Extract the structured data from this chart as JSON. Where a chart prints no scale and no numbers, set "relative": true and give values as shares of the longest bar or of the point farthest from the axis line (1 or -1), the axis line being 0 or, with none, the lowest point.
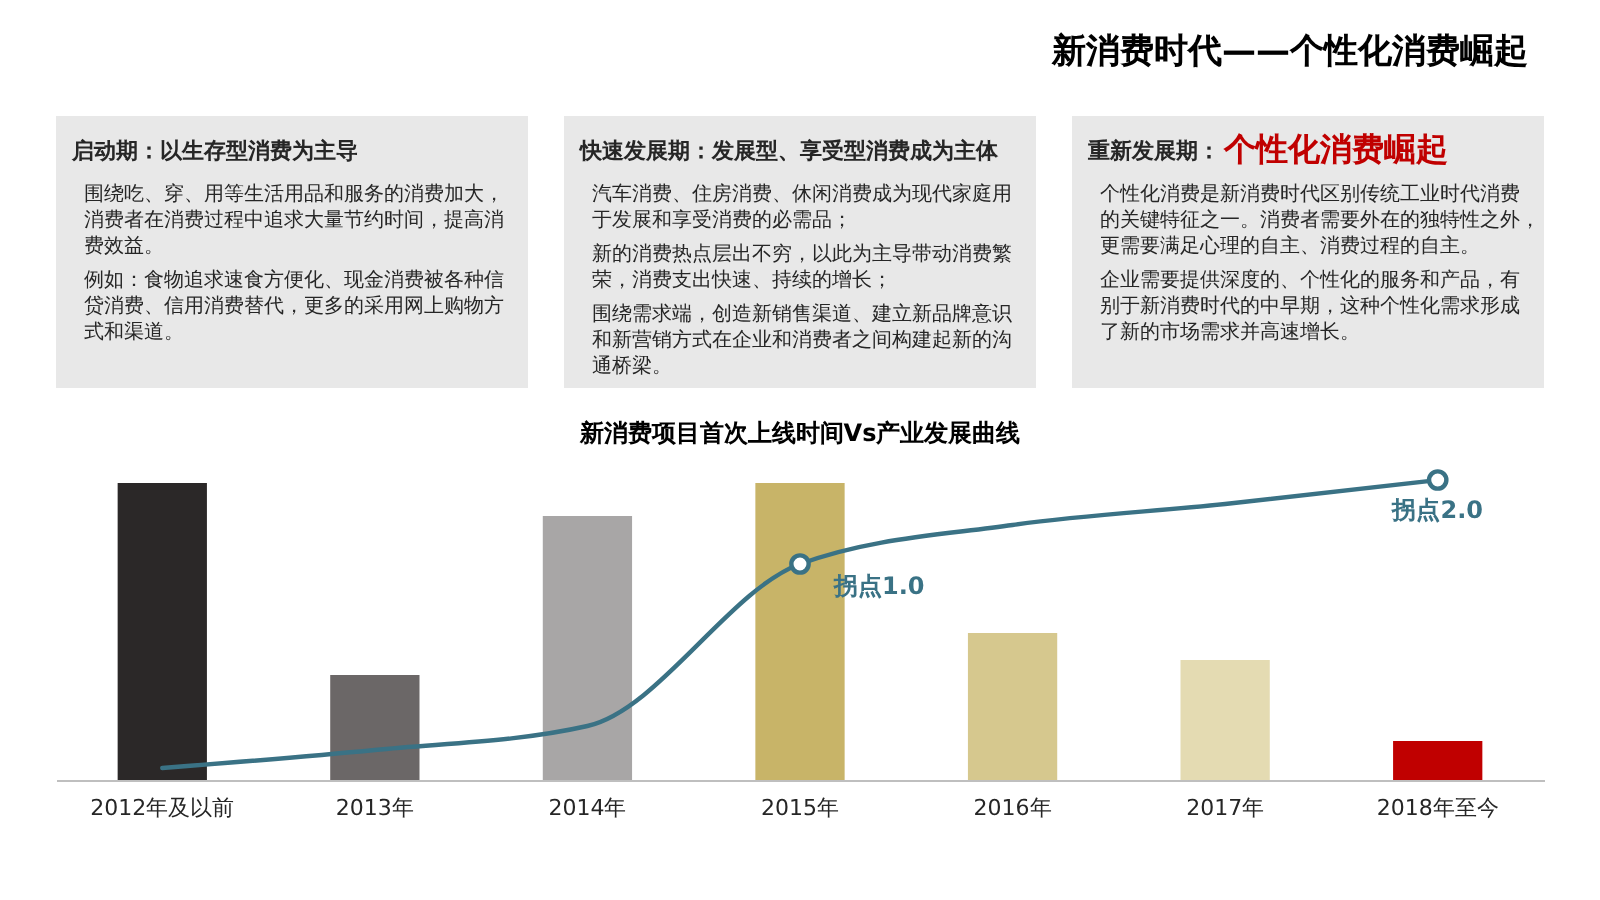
{
  "chart_data": [
    {
      "type": "other",
      "title": "新消费时代——个性化消费崛起"
    },
    {
      "type": "other",
      "title": "启动期：以生存型消费为主导",
      "annotations": [
        "围绕吃、穿、用等生活用品和服务的消费加大，消费者在消费过程中追求大量节约时间，提高消费效益。",
        "例如：食物追求速食方便化、现金消费被各种信贷消费、信用消费替代，更多的采用网上购物方式和渠道。"
      ]
    },
    {
      "type": "other",
      "title": "快速发展期：发展型、享受型消费成为主体",
      "annotations": [
        "汽车消费、住房消费、休闲消费成为现代家庭用于发展和享受消费的必需品；",
        "新的消费热点层出不穷，以此为主导带动消费繁荣，消费支出快速、持续的增长；",
        "围绕需求端，创造新销售渠道、建立新品牌意识和新营销方式在企业和消费者之间构建起新的沟通桥梁。"
      ]
    },
    {
      "type": "other",
      "title": "重新发展期：",
      "subtitle": "个性化消费崛起",
      "annotations": [
        "个性化消费是新消费时代区别传统工业时代消费的关键特征之一。消费者需要外在的独特性之外，更需要满足心理的自主、消费过程的自主。",
        "企业需要提供深度的、个性化的服务和产品，有别于新消费时代的中早期，这种个性化需求形成了新的市场需求并高速增长。"
      ]
    },
    {
      "type": "bar",
      "title": "新消费项目首次上线时间Vs产业发展曲线",
      "relative": true,
      "categories": [
        "2012年及以前",
        "2013年",
        "2014年",
        "2015年",
        "2016年",
        "2017年",
        "2018年至今"
      ],
      "series": [
        {
          "type": "bar",
          "colors": [
            "#2b2828",
            "#6b6767",
            "#a8a6a6",
            "#c8b468",
            "#d6c88e",
            "#e4dbb2",
            "#c00000"
          ],
          "values": [
            0.99,
            0.35,
            0.88,
            0.99,
            0.49,
            0.4,
            0.13
          ]
        },
        {
          "type": "line",
          "color": "#3a7285",
          "line_style": "solid",
          "values": [
            0.04,
            0.1,
            0.18,
            0.72,
            0.85,
            0.92,
            1.0
          ]
        },
        {
          "type": "scatter",
          "color": "#3a7285",
          "marker": "circle",
          "x": [
            "2015年",
            "2018年至今"
          ],
          "values": [
            0.72,
            1.0
          ]
        }
      ],
      "annotations": [
        {
          "text": "拐点1.0",
          "x": "2015年",
          "y": 0.72
        },
        {
          "text": "拐点2.0",
          "x": "2018年至今",
          "y": 1.0
        }
      ]
    }
  ]
}
